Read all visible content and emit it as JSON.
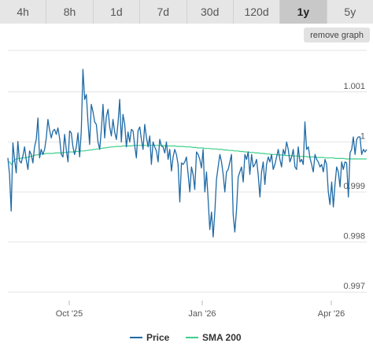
{
  "range_buttons": [
    {
      "label": "4h",
      "active": false
    },
    {
      "label": "8h",
      "active": false
    },
    {
      "label": "1d",
      "active": false
    },
    {
      "label": "7d",
      "active": false
    },
    {
      "label": "30d",
      "active": false
    },
    {
      "label": "120d",
      "active": false
    },
    {
      "label": "1y",
      "active": true
    },
    {
      "label": "5y",
      "active": false
    }
  ],
  "remove_graph_label": "remove graph",
  "chart_data": {
    "type": "line",
    "x_ticks": [
      "Oct '25",
      "Jan '26",
      "Apr '26"
    ],
    "y_ticks": [
      1.001,
      1,
      0.999,
      0.998,
      0.997
    ],
    "y_tick_labels": [
      "1.001",
      "1",
      "0.999",
      "0.998",
      "0.997"
    ],
    "ylim": [
      0.99683,
      1.00183
    ],
    "grid": true,
    "legend_position": "bottom",
    "series": [
      {
        "name": "Price",
        "color": "#1f6aa5",
        "values": [
          0.99968,
          0.99935,
          0.99862,
          0.99998,
          0.99965,
          0.99938,
          1.00001,
          0.99962,
          0.99958,
          0.99972,
          0.9999,
          0.99965,
          0.99945,
          0.99982,
          0.99975,
          0.99958,
          0.9999,
          1.00005,
          1.00048,
          0.99968,
          0.99985,
          0.99975,
          0.99985,
          1.00008,
          1.00045,
          1.00024,
          1.00008,
          1.00022,
          1.00025,
          1.00015,
          1.00028,
          1.00008,
          0.99975,
          0.9997,
          1.00015,
          0.99985,
          0.9996,
          1.00022,
          1.00018,
          0.9999,
          0.99975,
          0.9999,
          1.00018,
          0.9997,
          1.00022,
          1.00145,
          1.00085,
          1.00095,
          1.0004,
          0.99995,
          1.00075,
          1.0006,
          1.0004,
          1.00035,
          1.0,
          0.99985,
          1.00025,
          1.00075,
          1.00008,
          1.0005,
          1.00065,
          1.0003,
          1.00012,
          1.00045,
          1.0002,
          1.00005,
          1.00038,
          1.00085,
          1.0,
          1.00055,
          1.00035,
          0.9999,
          1.0002,
          1.0,
          1.00025,
          1.00022,
          0.99992,
          0.99968,
          1.00022,
          1.0003,
          1.00005,
          0.99985,
          1.00035,
          1.0001,
          0.9999,
          1.00012,
          0.99955,
          1.0,
          0.9999,
          0.99982,
          0.9996,
          1.00005,
          0.99992,
          0.9999,
          0.99978,
          1.0,
          0.99965,
          0.99985,
          0.99942,
          0.9997,
          0.99985,
          0.99975,
          0.99955,
          0.9988,
          0.99958,
          0.99955,
          0.9996,
          0.9997,
          0.99935,
          0.999,
          0.9995,
          0.99935,
          0.99905,
          0.9998,
          0.99975,
          0.99965,
          0.99948,
          0.99985,
          0.999,
          0.9994,
          0.99885,
          0.99825,
          0.9986,
          0.9981,
          0.9986,
          0.99925,
          0.9995,
          0.99975,
          0.9996,
          0.99935,
          0.999,
          0.9994,
          0.99945,
          0.9996,
          0.99975,
          0.99855,
          0.9982,
          0.99865,
          0.9993,
          0.9994,
          0.9995,
          0.9992,
          0.99975,
          0.99965,
          0.9998,
          0.99935,
          0.99975,
          0.9995,
          0.99955,
          0.99965,
          0.99935,
          0.9989,
          0.9994,
          0.9996,
          0.99915,
          0.99955,
          0.9997,
          0.9996,
          0.99975,
          0.99945,
          0.99955,
          0.9997,
          0.99985,
          0.99965,
          0.9995,
          0.99985,
          0.99975,
          1.0,
          0.99985,
          0.9996,
          0.9997,
          0.99985,
          0.9995,
          0.99945,
          0.9999,
          0.9996,
          0.99965,
          0.99955,
          1.0004,
          0.99985,
          0.9999,
          0.99968,
          0.99955,
          0.9994,
          0.99975,
          0.99965,
          0.9996,
          0.9995,
          0.99955,
          0.9994,
          0.99965,
          0.99955,
          0.999,
          0.99875,
          0.9992,
          0.9987,
          0.99915,
          0.9995,
          0.9994,
          0.9991,
          0.9996,
          0.99945,
          0.9996,
          0.99958,
          0.9989,
          0.99978,
          0.99985,
          1.0001,
          0.99975,
          1.00005,
          1.0001,
          1.0001,
          0.99975,
          0.99985,
          0.9998,
          0.99985
        ]
      },
      {
        "name": "SMA 200",
        "color": "#3dcf8a",
        "values": [
          0.9996,
          0.9996,
          0.99955,
          0.9996,
          0.99965,
          0.99966,
          0.99967,
          0.99967,
          0.99968,
          0.99968,
          0.99968,
          0.99969,
          0.9997,
          0.99971,
          0.99972,
          0.99973,
          0.99974,
          0.99974,
          0.99975,
          0.99976,
          0.99976,
          0.99976,
          0.99977,
          0.99977,
          0.99977,
          0.99977,
          0.99977,
          0.99978,
          0.99978,
          0.99978,
          0.99978,
          0.99978,
          0.99979,
          0.99979,
          0.99979,
          0.9998,
          0.9998,
          0.9998,
          0.9998,
          0.99981,
          0.99981,
          0.99981,
          0.99982,
          0.99982,
          0.99982,
          0.99983,
          0.99983,
          0.99984,
          0.99984,
          0.99985,
          0.99985,
          0.99986,
          0.99986,
          0.99987,
          0.99987,
          0.99988,
          0.99988,
          0.99989,
          0.99989,
          0.9999,
          0.9999,
          0.9999,
          0.99991,
          0.99991,
          0.99991,
          0.99991,
          0.99992,
          0.99992,
          0.99992,
          0.99992,
          0.99992,
          0.99992,
          0.99993,
          0.99993,
          0.99993,
          0.99993,
          0.99993,
          0.99993,
          0.99993,
          0.99993,
          0.99993,
          0.99993,
          0.99993,
          0.99993,
          0.99993,
          0.99993,
          0.99993,
          0.99993,
          0.99993,
          0.99993,
          0.99992,
          0.99992,
          0.99992,
          0.99992,
          0.99992,
          0.99992,
          0.99992,
          0.99991,
          0.99991,
          0.99991,
          0.99991,
          0.99991,
          0.9999,
          0.9999,
          0.9999,
          0.9999,
          0.99989,
          0.99989,
          0.99989,
          0.99988,
          0.99988,
          0.99988,
          0.99988,
          0.99987,
          0.99987,
          0.99987,
          0.99987,
          0.99986,
          0.99986,
          0.99986,
          0.99986,
          0.99985,
          0.99985,
          0.99985,
          0.99984,
          0.99984,
          0.99984,
          0.99983,
          0.99983,
          0.99983,
          0.99982,
          0.99982,
          0.99982,
          0.99981,
          0.99981,
          0.99981,
          0.9998,
          0.9998,
          0.9998,
          0.99979,
          0.99979,
          0.99979,
          0.99978,
          0.99978,
          0.99978,
          0.99977,
          0.99977,
          0.99977,
          0.99976,
          0.99976,
          0.99976,
          0.99975,
          0.99975,
          0.99975,
          0.99975,
          0.99974,
          0.99974,
          0.99974,
          0.99974,
          0.99973,
          0.99973,
          0.99973,
          0.99973,
          0.99972,
          0.99972,
          0.99972,
          0.99972,
          0.99971,
          0.99971,
          0.99971,
          0.99971,
          0.99971,
          0.9997,
          0.9997,
          0.9997,
          0.9997,
          0.9997,
          0.99969,
          0.99969,
          0.99969,
          0.99969,
          0.99969,
          0.99968,
          0.99968,
          0.99968,
          0.99968,
          0.99968,
          0.99968,
          0.99967,
          0.99967,
          0.99967,
          0.99967,
          0.99967,
          0.99967,
          0.99966,
          0.99966,
          0.99966,
          0.99966,
          0.99966,
          0.99966,
          0.99966,
          0.99966,
          0.99966,
          0.99966,
          0.99966,
          0.99966,
          0.99966
        ]
      }
    ]
  }
}
